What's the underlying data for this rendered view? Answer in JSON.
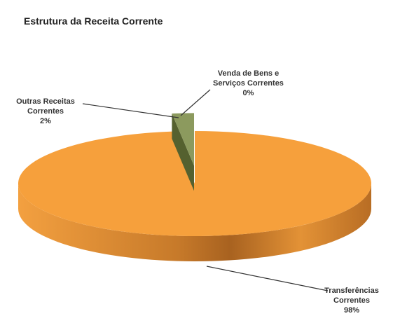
{
  "chart_data": {
    "type": "pie",
    "title": "Estrutura da Receita Corrente",
    "categories": [
      "Transferências Correntes",
      "Outras Receitas Correntes",
      "Venda de Bens e Serviços Correntes"
    ],
    "values": [
      98,
      2,
      0
    ],
    "value_labels": [
      "98%",
      "2%",
      "0%"
    ],
    "colors": [
      "#f6a03c",
      "#8c9a5e",
      "#6f8a3a"
    ]
  }
}
